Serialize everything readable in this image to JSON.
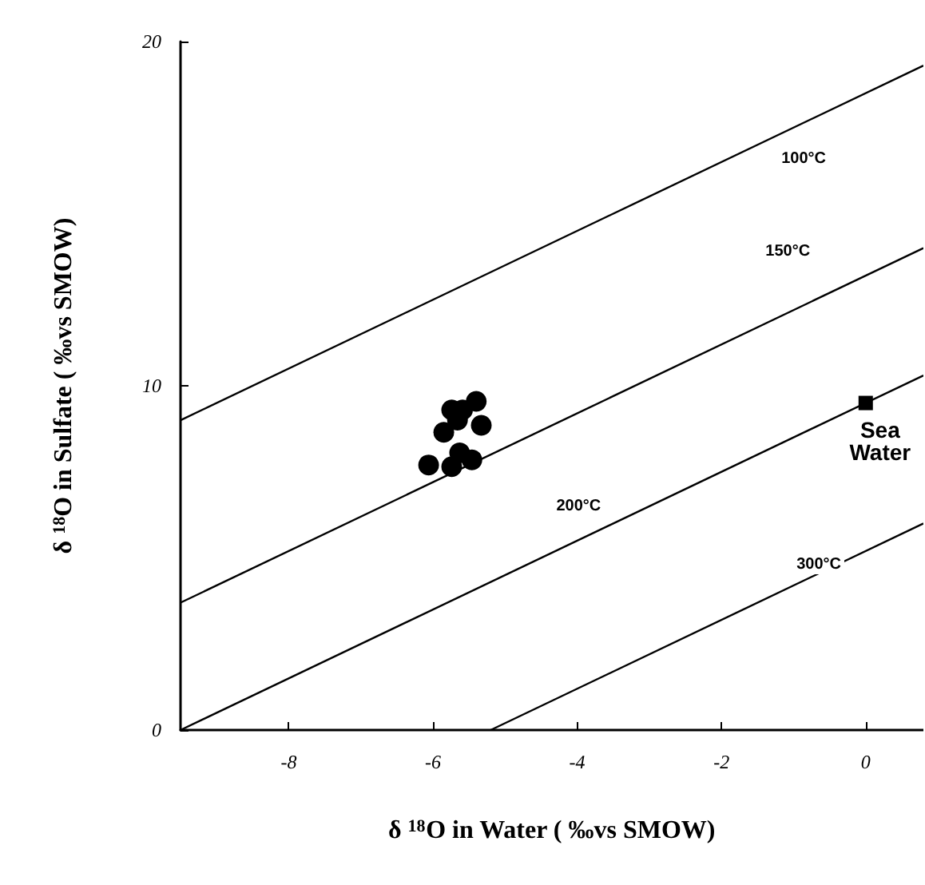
{
  "chart_data": {
    "type": "scatter",
    "xlabel": "δ $^{18}$O in Water ( ‰vs SMOW)",
    "ylabel": "δ $^{18}$O in Sulfate ( ‰vs SMOW)",
    "xlim": [
      -9.5,
      0.8
    ],
    "ylim": [
      0,
      20
    ],
    "xticks": [
      -8,
      -6,
      -4,
      -2,
      0
    ],
    "yticks": [
      0,
      10,
      20
    ],
    "grid": false,
    "series": [
      {
        "type": "line",
        "color": "#000000",
        "x": [
          -9.5,
          0.8
        ],
        "values": [
          9.0,
          19.3
        ],
        "marker": "none"
      },
      {
        "type": "line",
        "color": "#000000",
        "x": [
          -9.5,
          0.8
        ],
        "values": [
          3.7,
          14.0
        ],
        "marker": "none"
      },
      {
        "type": "line",
        "color": "#000000",
        "x": [
          -9.5,
          0.8
        ],
        "values": [
          0.0,
          10.3
        ],
        "marker": "none"
      },
      {
        "type": "line",
        "color": "#000000",
        "x": [
          -5.2,
          0.8
        ],
        "values": [
          0.0,
          6.0
        ],
        "marker": "none"
      },
      {
        "color": "#000000",
        "marker": "circle",
        "x": [
          -5.74,
          -5.59,
          -5.4,
          -5.66,
          -5.85,
          -5.33,
          -6.06,
          -5.74,
          -5.63,
          -5.46
        ],
        "values": [
          9.3,
          9.3,
          9.55,
          9.0,
          8.65,
          8.85,
          7.7,
          7.65,
          8.05,
          7.85
        ]
      },
      {
        "color": "#000000",
        "marker": "square",
        "x": [
          0
        ],
        "values": [
          9.5
        ]
      }
    ],
    "annotations": [
      {
        "text": "100°C",
        "x": -0.86,
        "y": 16.6
      },
      {
        "text": "150°C",
        "x": -1.08,
        "y": 13.9
      },
      {
        "text": "200°C",
        "x": -3.98,
        "y": 6.5
      },
      {
        "text": "300°C",
        "x": -0.65,
        "y": 4.8
      },
      {
        "text": "Sea\nWater",
        "x": 0.2,
        "y": 8.4
      }
    ]
  }
}
